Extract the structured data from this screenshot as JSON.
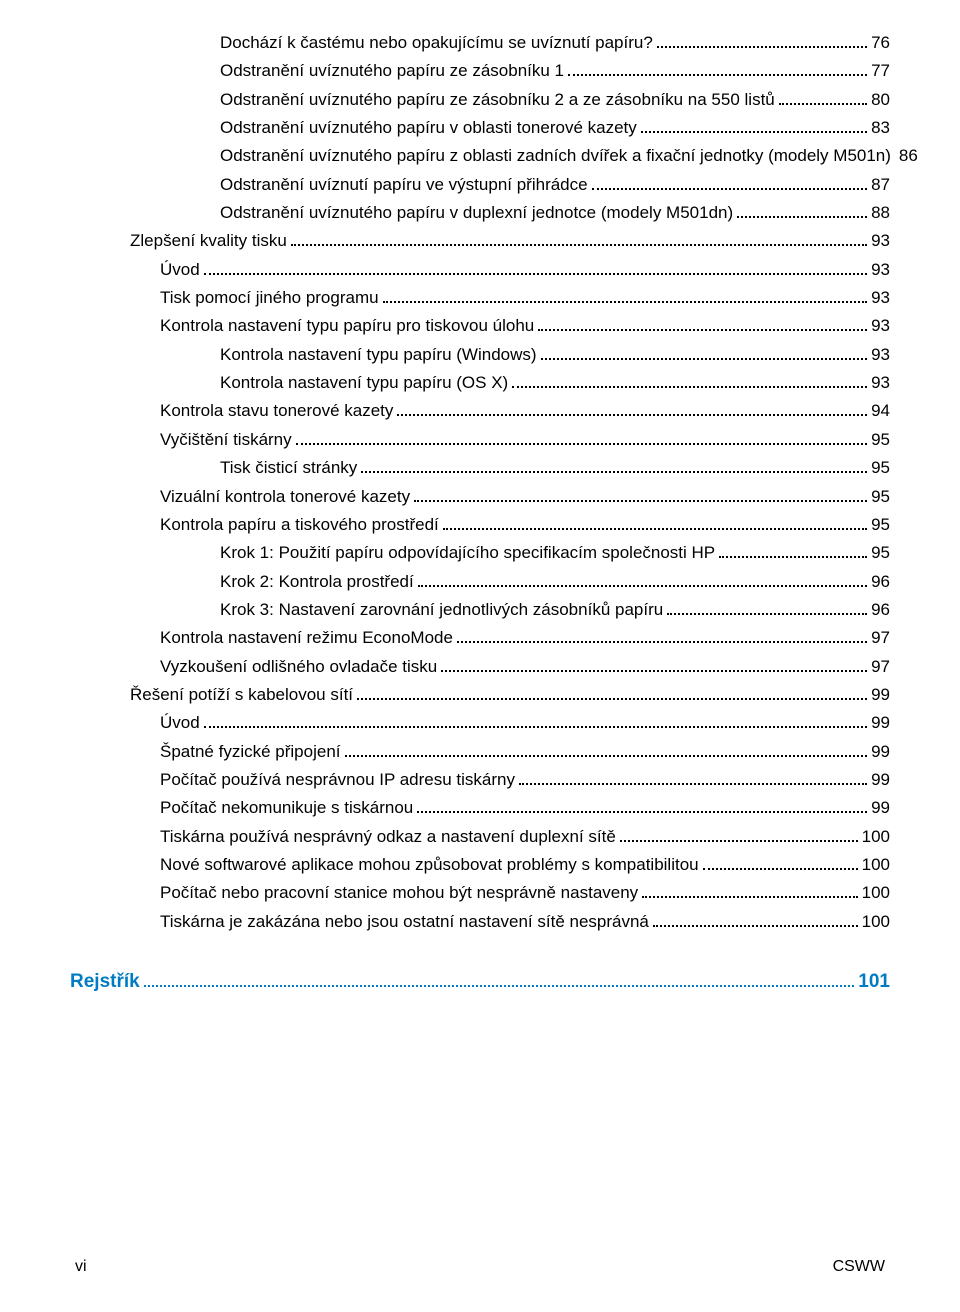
{
  "toc": [
    {
      "level": 4,
      "title": "Dochází k častému nebo opakujícímu se uvíznutí papíru?",
      "page": "76"
    },
    {
      "level": 4,
      "title": "Odstranění uvíznutého papíru ze zásobníku 1",
      "page": "77"
    },
    {
      "level": 4,
      "title": "Odstranění uvíznutého papíru ze zásobníku 2 a ze zásobníku na 550 listů",
      "page": "80"
    },
    {
      "level": 4,
      "title": "Odstranění uvíznutého papíru v oblasti tonerové kazety",
      "page": "83"
    },
    {
      "level": 4,
      "title": "Odstranění uvíznutého papíru z oblasti zadních dvířek a fixační jednotky (modely M501n)",
      "page": "86"
    },
    {
      "level": 4,
      "title": "Odstranění uvíznutí papíru ve výstupní přihrádce",
      "page": "87"
    },
    {
      "level": 4,
      "title": "Odstranění uvíznutého papíru v duplexní jednotce (modely M501dn)",
      "page": "88"
    },
    {
      "level": 2,
      "title": "Zlepšení kvality tisku",
      "page": "93"
    },
    {
      "level": 3,
      "title": "Úvod",
      "page": "93"
    },
    {
      "level": 3,
      "title": "Tisk pomocí jiného programu",
      "page": "93"
    },
    {
      "level": 3,
      "title": "Kontrola nastavení typu papíru pro tiskovou úlohu",
      "page": "93"
    },
    {
      "level": 4,
      "title": "Kontrola nastavení typu papíru (Windows)",
      "page": "93"
    },
    {
      "level": 4,
      "title": "Kontrola nastavení typu papíru (OS X)",
      "page": "93"
    },
    {
      "level": 3,
      "title": "Kontrola stavu tonerové kazety",
      "page": "94"
    },
    {
      "level": 3,
      "title": "Vyčištění tiskárny",
      "page": "95"
    },
    {
      "level": 4,
      "title": "Tisk čisticí stránky",
      "page": "95"
    },
    {
      "level": 3,
      "title": "Vizuální kontrola tonerové kazety",
      "page": "95"
    },
    {
      "level": 3,
      "title": "Kontrola papíru a tiskového prostředí",
      "page": "95"
    },
    {
      "level": 4,
      "title": "Krok 1: Použití papíru odpovídajícího specifikacím společnosti HP",
      "page": "95"
    },
    {
      "level": 4,
      "title": "Krok 2: Kontrola prostředí",
      "page": "96"
    },
    {
      "level": 4,
      "title": "Krok 3: Nastavení zarovnání jednotlivých zásobníků papíru",
      "page": "96"
    },
    {
      "level": 3,
      "title": "Kontrola nastavení režimu EconoMode",
      "page": "97"
    },
    {
      "level": 3,
      "title": "Vyzkoušení odlišného ovladače tisku",
      "page": "97"
    },
    {
      "level": 2,
      "title": "Řešení potíží s kabelovou sítí",
      "page": "99"
    },
    {
      "level": 3,
      "title": "Úvod",
      "page": "99"
    },
    {
      "level": 3,
      "title": "Špatné fyzické připojení",
      "page": "99"
    },
    {
      "level": 3,
      "title": "Počítač používá nesprávnou IP adresu tiskárny",
      "page": "99"
    },
    {
      "level": 3,
      "title": "Počítač nekomunikuje s tiskárnou",
      "page": "99"
    },
    {
      "level": 3,
      "title": "Tiskárna používá nesprávný odkaz a nastavení duplexní sítě",
      "page": "100"
    },
    {
      "level": 3,
      "title": "Nové softwarové aplikace mohou způsobovat problémy s kompatibilitou",
      "page": "100"
    },
    {
      "level": 3,
      "title": "Počítač nebo pracovní stanice mohou být nesprávně nastaveny",
      "page": "100"
    },
    {
      "level": 3,
      "title": "Tiskárna je zakázána nebo jsou ostatní nastavení sítě nesprávná",
      "page": "100"
    }
  ],
  "index": {
    "title": "Rejstřík",
    "page": "101"
  },
  "footer": {
    "left": "vi",
    "right": "CSWW"
  },
  "colors": {
    "text": "#000000",
    "link_blue": "#007cc2",
    "background": "#ffffff"
  }
}
